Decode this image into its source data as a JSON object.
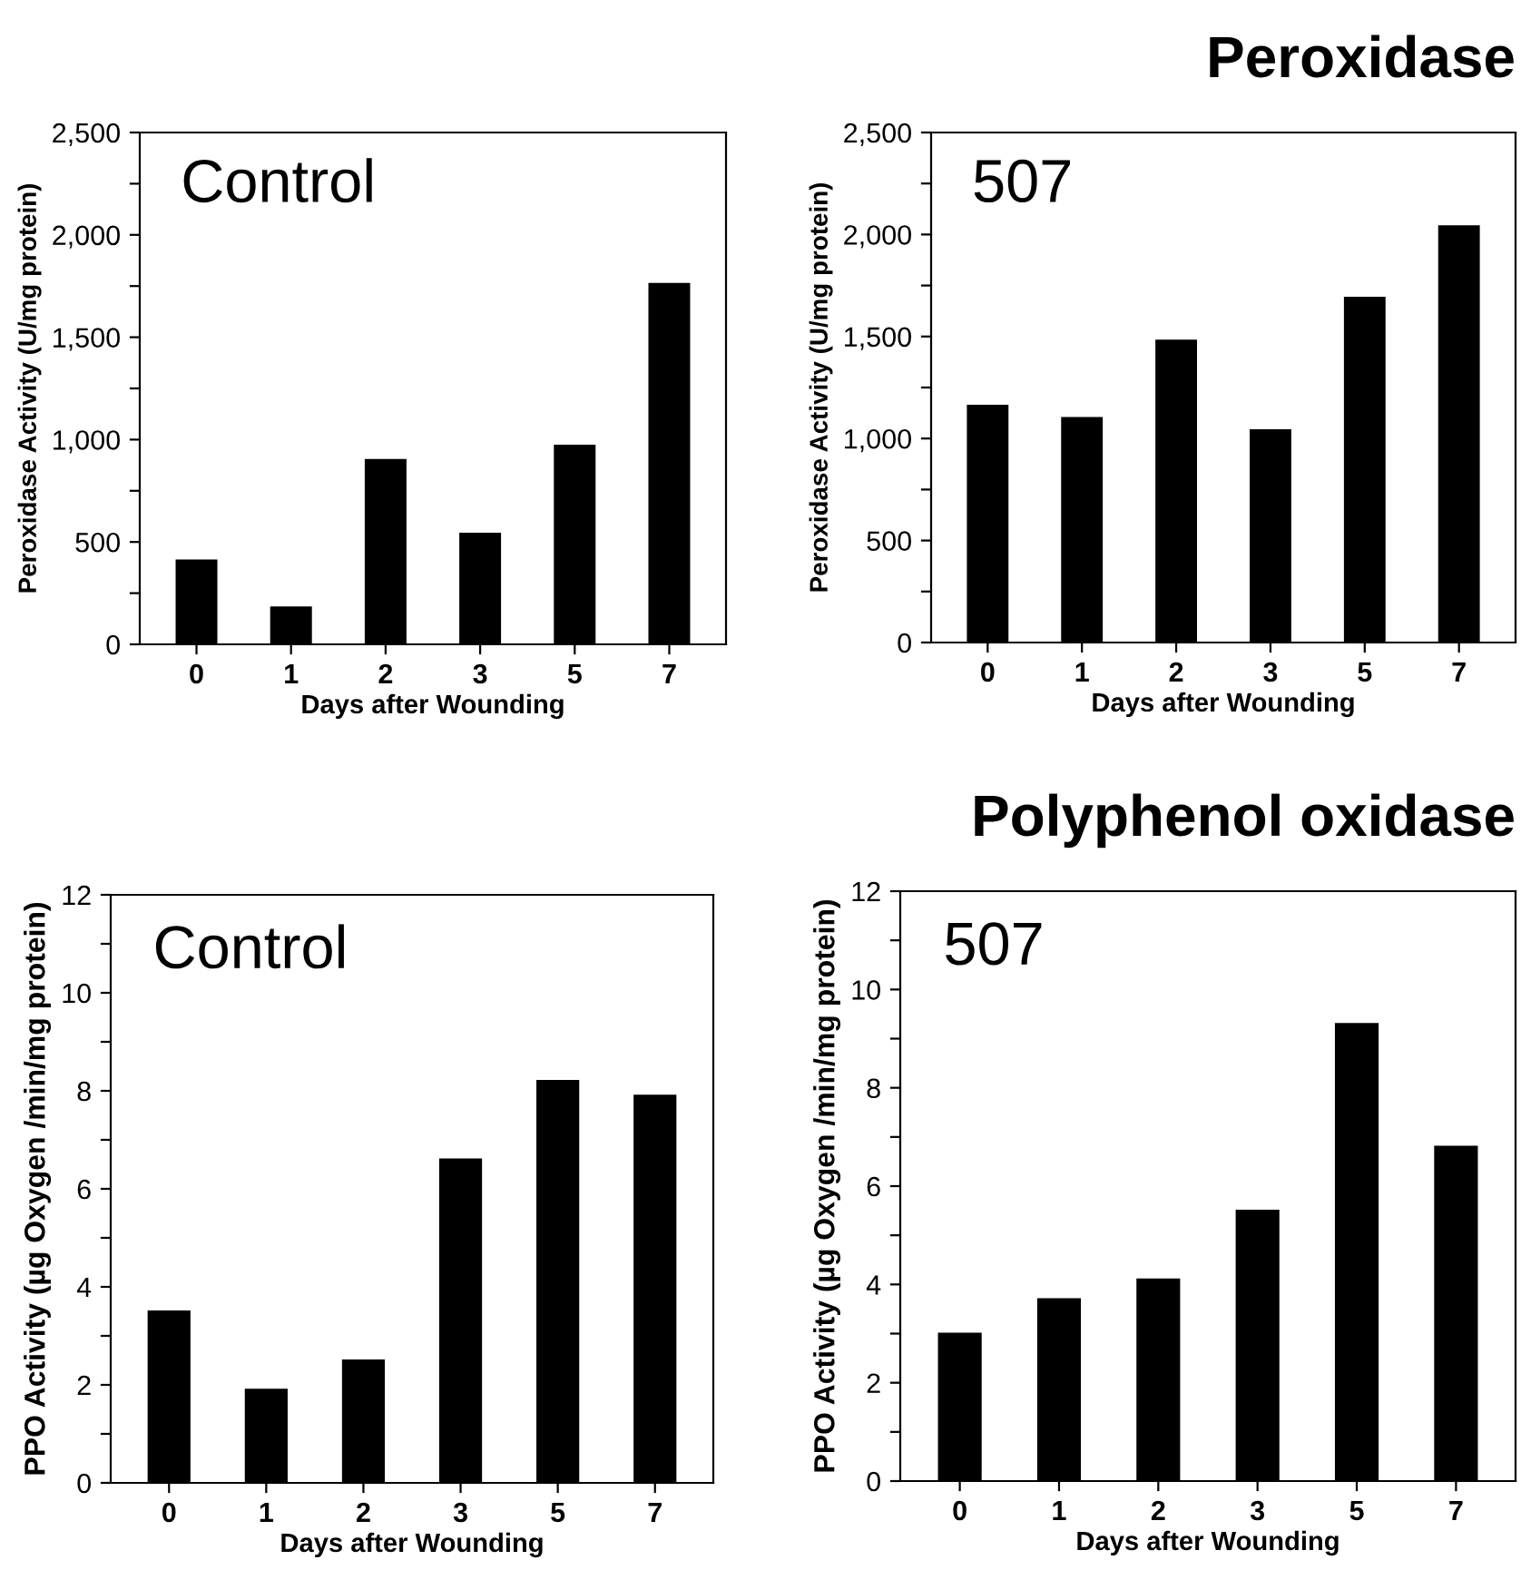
{
  "chart_data": [
    {
      "type": "bar",
      "categories": [
        "0",
        "1",
        "2",
        "3",
        "5",
        "7"
      ],
      "xlabel": "Days after Wounding",
      "ylabel": "Peroxidase Activity (U/mg protein)",
      "annotations": [
        "Control"
      ],
      "values": [
        410,
        180,
        900,
        540,
        970,
        1760
      ],
      "color": "#000000",
      "ylim": [
        0,
        2500
      ],
      "yticks": [
        {
          "value": 0,
          "label": "0"
        },
        {
          "value": 250,
          "label": null
        },
        {
          "value": 500,
          "label": "500"
        },
        {
          "value": 750,
          "label": null
        },
        {
          "value": 1000,
          "label": "1,000"
        },
        {
          "value": 1250,
          "label": null
        },
        {
          "value": 1500,
          "label": "1,500"
        },
        {
          "value": 1750,
          "label": null
        },
        {
          "value": 2000,
          "label": "2,000"
        },
        {
          "value": 2250,
          "label": null
        },
        {
          "value": 2500,
          "label": "2,500"
        }
      ]
    },
    {
      "type": "bar",
      "title": "Peroxidase",
      "categories": [
        "0",
        "1",
        "2",
        "3",
        "5",
        "7"
      ],
      "xlabel": "Days after Wounding",
      "ylabel": "Peroxidase Activity (U/mg protein)",
      "annotations": [
        "507"
      ],
      "values": [
        1160,
        1100,
        1480,
        1040,
        1690,
        2040
      ],
      "color": "#000000",
      "ylim": [
        0,
        2500
      ],
      "yticks": [
        {
          "value": 0,
          "label": "0"
        },
        {
          "value": 250,
          "label": null
        },
        {
          "value": 500,
          "label": "500"
        },
        {
          "value": 750,
          "label": null
        },
        {
          "value": 1000,
          "label": "1,000"
        },
        {
          "value": 1250,
          "label": null
        },
        {
          "value": 1500,
          "label": "1,500"
        },
        {
          "value": 1750,
          "label": null
        },
        {
          "value": 2000,
          "label": "2,000"
        },
        {
          "value": 2250,
          "label": null
        },
        {
          "value": 2500,
          "label": "2,500"
        }
      ]
    },
    {
      "type": "bar",
      "categories": [
        "0",
        "1",
        "2",
        "3",
        "5",
        "7"
      ],
      "xlabel": "Days after Wounding",
      "ylabel": "PPO Activity (µg Oxygen /min/mg protein)",
      "annotations": [
        "Control"
      ],
      "values": [
        3.5,
        1.9,
        2.5,
        6.6,
        8.2,
        7.9
      ],
      "color": "#000000",
      "ylim": [
        0,
        12
      ],
      "yticks": [
        0,
        {
          "value": 1,
          "label": null
        },
        2,
        {
          "value": 3,
          "label": null
        },
        4,
        {
          "value": 5,
          "label": null
        },
        6,
        {
          "value": 7,
          "label": null
        },
        8,
        {
          "value": 9,
          "label": null
        },
        10,
        {
          "value": 11,
          "label": null
        },
        12
      ]
    },
    {
      "type": "bar",
      "title": "Polyphenol oxidase",
      "categories": [
        "0",
        "1",
        "2",
        "3",
        "5",
        "7"
      ],
      "xlabel": "Days after Wounding",
      "ylabel": "PPO Activity (µg Oxygen /min/mg protein)",
      "annotations": [
        "507"
      ],
      "values": [
        3.0,
        3.7,
        4.1,
        5.5,
        9.3,
        6.8
      ],
      "color": "#000000",
      "ylim": [
        0,
        12
      ],
      "yticks": [
        0,
        {
          "value": 1,
          "label": null
        },
        2,
        {
          "value": 3,
          "label": null
        },
        4,
        {
          "value": 5,
          "label": null
        },
        6,
        {
          "value": 7,
          "label": null
        },
        8,
        {
          "value": 9,
          "label": null
        },
        10,
        {
          "value": 11,
          "label": null
        },
        12
      ]
    }
  ]
}
